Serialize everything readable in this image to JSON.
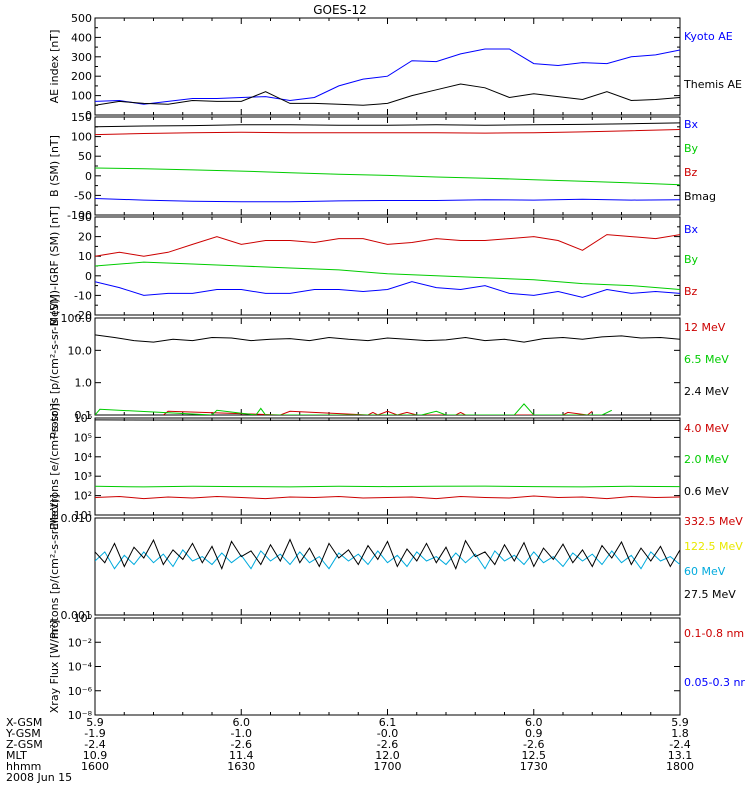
{
  "title": "GOES-12",
  "colors": {
    "black": "#000000",
    "blue": "#0000ff",
    "red": "#cc0000",
    "green": "#00cc00",
    "cyan": "#00aadd",
    "yellow": "#e8e800",
    "bg": "#ffffff"
  },
  "footer": {
    "row_labels": [
      "X-GSM",
      "Y-GSM",
      "Z-GSM",
      "MLT",
      "hhmm",
      "2008 Jun 15"
    ],
    "columns": [
      {
        "x": "5.9",
        "y": "-1.9",
        "z": "-2.4",
        "mlt": "10.9",
        "hhmm": "1600"
      },
      {
        "x": "6.0",
        "y": "-1.0",
        "z": "-2.6",
        "mlt": "11.4",
        "hhmm": "1630"
      },
      {
        "x": "6.1",
        "y": "-0.0",
        "z": "-2.6",
        "mlt": "12.0",
        "hhmm": "1700"
      },
      {
        "x": "6.0",
        "y": "0.9",
        "z": "-2.6",
        "mlt": "12.5",
        "hhmm": "1730"
      },
      {
        "x": "5.9",
        "y": "1.8",
        "z": "-2.4",
        "mlt": "13.1",
        "hhmm": "1800"
      }
    ]
  },
  "chart_data": [
    {
      "type": "line",
      "ylabel": "AE index [nT]",
      "ylim": [
        0,
        500
      ],
      "yscale": "linear",
      "yticks": [
        "0",
        "100",
        "200",
        "300",
        "400",
        "500"
      ],
      "series": [
        {
          "name": "Kyoto AE",
          "color": "blue",
          "x": [
            0,
            5,
            10,
            15,
            20,
            25,
            30,
            35,
            40,
            45,
            50,
            55,
            60,
            65,
            70,
            75,
            80,
            85,
            90,
            95,
            100,
            105,
            110,
            115,
            120
          ],
          "y": [
            70,
            75,
            55,
            70,
            85,
            85,
            90,
            95,
            75,
            90,
            150,
            185,
            200,
            280,
            275,
            315,
            340,
            340,
            265,
            255,
            270,
            265,
            300,
            310,
            335
          ]
        },
        {
          "name": "Themis AE",
          "color": "black",
          "x": [
            0,
            5,
            10,
            15,
            20,
            25,
            30,
            35,
            40,
            45,
            50,
            55,
            60,
            65,
            70,
            75,
            80,
            85,
            90,
            95,
            100,
            105,
            110,
            115,
            120
          ],
          "y": [
            50,
            70,
            60,
            55,
            75,
            70,
            70,
            120,
            60,
            60,
            55,
            50,
            60,
            100,
            130,
            160,
            140,
            90,
            110,
            95,
            80,
            120,
            75,
            80,
            90
          ]
        }
      ]
    },
    {
      "type": "line",
      "ylabel": "B (SM) [nT]",
      "ylim": [
        -100,
        150
      ],
      "yscale": "linear",
      "yticks": [
        "-100",
        "-50",
        "0",
        "50",
        "100",
        "150"
      ],
      "series": [
        {
          "name": "Bx",
          "color": "blue",
          "x": [
            0,
            10,
            20,
            30,
            40,
            50,
            60,
            70,
            80,
            90,
            100,
            110,
            120
          ],
          "y": [
            -58,
            -62,
            -65,
            -66,
            -66,
            -64,
            -63,
            -63,
            -61,
            -62,
            -60,
            -62,
            -61
          ]
        },
        {
          "name": "By",
          "color": "green",
          "x": [
            0,
            10,
            20,
            30,
            40,
            50,
            60,
            70,
            80,
            90,
            100,
            110,
            120
          ],
          "y": [
            20,
            18,
            15,
            12,
            8,
            4,
            1,
            -3,
            -6,
            -10,
            -14,
            -18,
            -23
          ]
        },
        {
          "name": "Bz",
          "color": "red",
          "x": [
            0,
            10,
            20,
            30,
            40,
            50,
            60,
            70,
            80,
            90,
            100,
            110,
            120
          ],
          "y": [
            105,
            108,
            110,
            111,
            110,
            110,
            110,
            110,
            109,
            110,
            112,
            115,
            118
          ]
        },
        {
          "name": "Bmag",
          "color": "black",
          "x": [
            0,
            10,
            20,
            30,
            40,
            50,
            60,
            70,
            80,
            90,
            100,
            110,
            120
          ],
          "y": [
            125,
            127,
            128,
            130,
            130,
            129,
            129,
            130,
            129,
            130,
            131,
            133,
            135
          ]
        }
      ]
    },
    {
      "type": "line",
      "ylabel": "B (SM)-IGRF (SM) [nT]",
      "ylim": [
        -20,
        30
      ],
      "yscale": "linear",
      "yticks": [
        "-20",
        "-10",
        "0",
        "10",
        "20",
        "30"
      ],
      "series": [
        {
          "name": "Bx",
          "color": "blue",
          "x": [
            0,
            5,
            10,
            15,
            20,
            25,
            30,
            35,
            40,
            45,
            50,
            55,
            60,
            65,
            70,
            75,
            80,
            85,
            90,
            95,
            100,
            105,
            110,
            115,
            120
          ],
          "y": [
            -3,
            -6,
            -10,
            -9,
            -9,
            -7,
            -7,
            -9,
            -9,
            -7,
            -7,
            -8,
            -7,
            -3,
            -6,
            -7,
            -5,
            -9,
            -10,
            -8,
            -11,
            -7,
            -9,
            -8,
            -9
          ]
        },
        {
          "name": "By",
          "color": "green",
          "x": [
            0,
            10,
            20,
            30,
            40,
            50,
            60,
            70,
            80,
            90,
            100,
            110,
            120
          ],
          "y": [
            5,
            7,
            6,
            5,
            4,
            3,
            1,
            0,
            -1,
            -2,
            -4,
            -5,
            -7
          ]
        },
        {
          "name": "Bz",
          "color": "red",
          "x": [
            0,
            5,
            10,
            15,
            20,
            25,
            30,
            35,
            40,
            45,
            50,
            55,
            60,
            65,
            70,
            75,
            80,
            85,
            90,
            95,
            100,
            105,
            110,
            115,
            120
          ],
          "y": [
            10,
            12,
            10,
            12,
            16,
            20,
            16,
            18,
            18,
            17,
            19,
            19,
            16,
            17,
            19,
            18,
            18,
            19,
            20,
            18,
            13,
            21,
            20,
            19,
            21
          ]
        }
      ]
    },
    {
      "type": "line",
      "ylabel": "Protons [p/(cm²-s-sr-MeV)]",
      "ylim": [
        0.1,
        100
      ],
      "yscale": "log",
      "yticks": [
        "0.1",
        "1.0",
        "10.0",
        "100.0"
      ],
      "series": [
        {
          "name": "12 MeV",
          "color": "red",
          "x": [
            14,
            15,
            38,
            40,
            56,
            57,
            58,
            60,
            62,
            64,
            66,
            74,
            75,
            76,
            96,
            97,
            101,
            102
          ],
          "y": [
            0.1,
            0.13,
            0.1,
            0.13,
            0.1,
            0.12,
            0.1,
            0.13,
            0.1,
            0.12,
            0.1,
            0.1,
            0.12,
            0.1,
            0.1,
            0.12,
            0.1,
            0.13
          ]
        },
        {
          "name": "6.5 MeV",
          "color": "green",
          "x": [
            0,
            1,
            24,
            25,
            33,
            34,
            35,
            67,
            70,
            72,
            86,
            88,
            90,
            104,
            106
          ],
          "y": [
            0.1,
            0.15,
            0.1,
            0.14,
            0.1,
            0.16,
            0.1,
            0.1,
            0.13,
            0.1,
            0.1,
            0.22,
            0.1,
            0.1,
            0.14
          ]
        },
        {
          "name": "2.4 MeV",
          "color": "black",
          "x": [
            0,
            4,
            8,
            12,
            16,
            20,
            24,
            28,
            32,
            36,
            40,
            44,
            48,
            52,
            56,
            60,
            64,
            68,
            72,
            76,
            80,
            84,
            88,
            92,
            96,
            100,
            104,
            108,
            112,
            116,
            120
          ],
          "y": [
            30,
            25,
            20,
            18,
            22,
            20,
            25,
            24,
            20,
            22,
            23,
            20,
            25,
            22,
            20,
            24,
            22,
            20,
            21,
            25,
            20,
            22,
            18,
            23,
            25,
            22,
            26,
            28,
            24,
            25,
            22
          ]
        }
      ]
    },
    {
      "type": "line",
      "ylabel": "Electrons [e/(cm²-s-sr)]",
      "ylim": [
        10,
        1000000
      ],
      "yscale": "log",
      "yticks": [
        "10¹",
        "10²",
        "10³",
        "10⁴",
        "10⁵",
        "10⁶"
      ],
      "series": [
        {
          "name": "4.0 MeV",
          "color": "red",
          "x": [
            0,
            5,
            10,
            15,
            20,
            25,
            30,
            35,
            40,
            45,
            50,
            55,
            60,
            65,
            70,
            75,
            80,
            85,
            90,
            95,
            100,
            105,
            110,
            115,
            120
          ],
          "y": [
            80,
            90,
            70,
            85,
            75,
            90,
            80,
            70,
            85,
            80,
            90,
            75,
            80,
            85,
            70,
            90,
            80,
            75,
            95,
            80,
            85,
            70,
            90,
            80,
            85
          ]
        },
        {
          "name": "2.0 MeV",
          "color": "green",
          "x": [
            0,
            10,
            20,
            30,
            40,
            50,
            60,
            70,
            80,
            90,
            100,
            110,
            120
          ],
          "y": [
            300,
            280,
            300,
            290,
            280,
            300,
            290,
            300,
            310,
            290,
            280,
            300,
            290
          ]
        },
        {
          "name": "0.6 MeV",
          "color": "black",
          "x": [
            0,
            20,
            40,
            60,
            80,
            100,
            120
          ],
          "y": [
            800000,
            780000,
            760000,
            770000,
            760000,
            760000,
            750000
          ]
        }
      ]
    },
    {
      "type": "line",
      "ylabel": "Protons [p/(cm²-s-sr-MeV)]",
      "ylim": [
        0.001,
        0.1
      ],
      "yscale": "log",
      "yticks": [
        "0.001",
        "0.010"
      ],
      "series": [
        {
          "name": "332.5 MeV",
          "color": "red",
          "x": [],
          "y": []
        },
        {
          "name": "122.5 MeV",
          "color": "yellow",
          "x": [],
          "y": []
        },
        {
          "name": "60 MeV",
          "color": "cyan",
          "x": [
            0,
            2,
            4,
            6,
            8,
            10,
            12,
            14,
            16,
            18,
            20,
            22,
            24,
            26,
            28,
            30,
            32,
            34,
            36,
            38,
            40,
            42,
            44,
            46,
            48,
            50,
            52,
            54,
            56,
            58,
            60,
            62,
            64,
            66,
            68,
            70,
            72,
            74,
            76,
            78,
            80,
            82,
            84,
            86,
            88,
            90,
            92,
            94,
            96,
            98,
            100,
            102,
            104,
            106,
            108,
            110,
            112,
            114,
            116,
            118,
            120
          ],
          "y": [
            0.013,
            0.02,
            0.009,
            0.017,
            0.011,
            0.02,
            0.012,
            0.018,
            0.01,
            0.022,
            0.013,
            0.016,
            0.011,
            0.019,
            0.012,
            0.017,
            0.009,
            0.021,
            0.013,
            0.018,
            0.011,
            0.02,
            0.012,
            0.016,
            0.009,
            0.019,
            0.013,
            0.018,
            0.011,
            0.021,
            0.012,
            0.017,
            0.01,
            0.02,
            0.013,
            0.016,
            0.011,
            0.019,
            0.012,
            0.018,
            0.009,
            0.021,
            0.013,
            0.017,
            0.011,
            0.02,
            0.012,
            0.016,
            0.01,
            0.019,
            0.013,
            0.018,
            0.011,
            0.021,
            0.012,
            0.017,
            0.009,
            0.02,
            0.013,
            0.016,
            0.011
          ]
        },
        {
          "name": "27.5 MeV",
          "color": "black",
          "x": [
            0,
            2,
            4,
            6,
            8,
            10,
            12,
            14,
            16,
            18,
            20,
            22,
            24,
            26,
            28,
            30,
            32,
            34,
            36,
            38,
            40,
            42,
            44,
            46,
            48,
            50,
            52,
            54,
            56,
            58,
            60,
            62,
            64,
            66,
            68,
            70,
            72,
            74,
            76,
            78,
            80,
            82,
            84,
            86,
            88,
            90,
            92,
            94,
            96,
            98,
            100,
            102,
            104,
            106,
            108,
            110,
            112,
            114,
            116,
            118,
            120
          ],
          "y": [
            0.02,
            0.012,
            0.03,
            0.01,
            0.025,
            0.015,
            0.035,
            0.011,
            0.022,
            0.014,
            0.03,
            0.012,
            0.026,
            0.009,
            0.033,
            0.016,
            0.021,
            0.011,
            0.028,
            0.013,
            0.036,
            0.012,
            0.024,
            0.01,
            0.03,
            0.015,
            0.022,
            0.011,
            0.027,
            0.014,
            0.033,
            0.01,
            0.023,
            0.013,
            0.03,
            0.012,
            0.025,
            0.009,
            0.034,
            0.016,
            0.02,
            0.011,
            0.028,
            0.013,
            0.031,
            0.01,
            0.024,
            0.014,
            0.029,
            0.012,
            0.022,
            0.01,
            0.027,
            0.015,
            0.032,
            0.011,
            0.024,
            0.013,
            0.026,
            0.01,
            0.022
          ]
        }
      ]
    },
    {
      "type": "line",
      "ylabel": "Xray Flux [W/m²]",
      "ylim": [
        1e-08,
        1
      ],
      "yscale": "log",
      "yticks": [
        "10⁻⁸",
        "10⁻⁶",
        "10⁻⁴",
        "10⁻²",
        "10⁰"
      ],
      "series": [
        {
          "name": "0.1-0.8 nm",
          "color": "red",
          "x": [],
          "y": []
        },
        {
          "name": "0.05-0.3 nr",
          "color": "blue",
          "x": [],
          "y": []
        }
      ]
    }
  ]
}
